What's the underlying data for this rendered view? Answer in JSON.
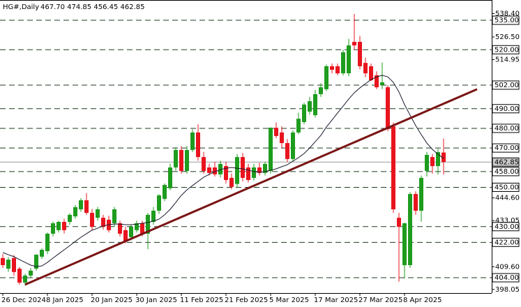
{
  "chart_data": {
    "type": "candlestick",
    "title": "HG#,Daily",
    "ohlc_text": "467.70 474.85 456.45 462.85",
    "categories": [
      "26 Dec 2024",
      null,
      null,
      null,
      null,
      null,
      null,
      null,
      "8 Jan 2025",
      null,
      null,
      null,
      null,
      null,
      null,
      null,
      "20 Jan 2025",
      null,
      null,
      null,
      null,
      null,
      null,
      null,
      "30 Jan 2025",
      null,
      null,
      null,
      null,
      null,
      null,
      null,
      "11 Feb 2025",
      null,
      null,
      null,
      null,
      null,
      null,
      null,
      "21 Feb 2025",
      null,
      null,
      null,
      null,
      null,
      null,
      null,
      "5 Mar 2025",
      null,
      null,
      null,
      null,
      null,
      null,
      null,
      "17 Mar 2025",
      null,
      null,
      null,
      null,
      null,
      null,
      null,
      "27 Mar 2025",
      null,
      null,
      null,
      null,
      null,
      null,
      null,
      "8 Apr 2025",
      null,
      null,
      null,
      null,
      null,
      null,
      null
    ],
    "open": [
      414.0,
      408.6,
      414.0,
      408.6,
      401.5,
      405.1,
      408.6,
      414.7,
      417.5,
      426.4,
      428.2,
      432.4,
      432.4,
      435.2,
      438.8,
      443.4,
      437.0,
      434.5,
      434.5,
      433.5,
      431.7,
      431.7,
      428.2,
      424.6,
      428.2,
      431.7,
      426.4,
      432.4,
      438.1,
      444.1,
      449.5,
      460.1,
      469.0,
      458.3,
      469.0,
      477.9,
      465.4,
      460.1,
      460.1,
      456.6,
      460.8,
      454.8,
      451.7,
      465.4,
      460.1,
      454.8,
      460.1,
      457.3,
      458.3,
      480.3,
      477.9,
      472.5,
      464.4,
      477.9,
      483.2,
      488.5,
      486.7,
      497.4,
      499.9,
      511.6,
      511.6,
      508.0,
      508.0,
      524.0,
      524.0,
      513.3,
      511.6,
      507.0,
      502.0,
      500.9,
      481.0,
      434.5,
      410.4,
      410.4,
      446.6,
      438.1,
      458.3,
      465.4,
      460.8,
      467.7
    ],
    "high": [
      416.0,
      414.5,
      415.5,
      409.5,
      406.0,
      409.0,
      416.0,
      419.0,
      427.0,
      432.5,
      433.0,
      434.0,
      436.8,
      441.0,
      444.5,
      447.0,
      439.0,
      440.0,
      436.0,
      435.5,
      440.0,
      433.0,
      430.0,
      431.0,
      433.0,
      433.0,
      437.0,
      440.0,
      446.5,
      452.0,
      462.0,
      470.5,
      471.0,
      471.0,
      479.5,
      482.0,
      468.0,
      462.0,
      463.0,
      463.5,
      463.0,
      457.0,
      467.0,
      467.5,
      462.0,
      462.0,
      462.5,
      463.0,
      480.5,
      483.0,
      481.0,
      474.5,
      479.0,
      488.0,
      493.0,
      496.0,
      499.5,
      503.0,
      512.5,
      513.0,
      513.0,
      520.0,
      525.5,
      538.2,
      527.0,
      516.0,
      513.0,
      509.0,
      513.5,
      502.0,
      483.0,
      437.0,
      432.0,
      447.5,
      448.0,
      456.0,
      468.0,
      467.0,
      469.5,
      474.85
    ],
    "low": [
      409.0,
      407.0,
      405.0,
      400.5,
      400.0,
      404.0,
      407.5,
      413.5,
      416.0,
      425.0,
      427.0,
      426.5,
      431.0,
      434.0,
      437.5,
      436.0,
      428.0,
      433.0,
      428.5,
      427.0,
      430.0,
      425.0,
      421.5,
      423.0,
      427.0,
      425.0,
      418.5,
      431.0,
      436.5,
      443.0,
      448.5,
      458.5,
      457.0,
      457.0,
      468.0,
      463.5,
      457.0,
      456.0,
      455.5,
      455.0,
      452.0,
      449.0,
      450.0,
      453.0,
      452.5,
      453.5,
      456.0,
      456.0,
      457.0,
      475.0,
      470.0,
      463.0,
      463.0,
      477.0,
      482.0,
      487.0,
      485.5,
      496.0,
      499.0,
      508.0,
      507.0,
      507.0,
      506.5,
      520.0,
      510.0,
      506.0,
      504.0,
      500.0,
      500.0,
      478.5,
      437.0,
      402.0,
      403.5,
      409.0,
      436.0,
      432.5,
      455.5,
      457.0,
      456.5,
      456.45
    ],
    "close": [
      410.4,
      413.2,
      406.9,
      401.5,
      405.1,
      407.6,
      415.7,
      418.2,
      426.4,
      431.7,
      432.4,
      428.2,
      436.0,
      439.9,
      443.4,
      437.0,
      429.9,
      438.8,
      429.9,
      428.2,
      438.8,
      426.4,
      422.8,
      429.9,
      431.7,
      426.4,
      436.0,
      438.1,
      445.9,
      451.2,
      460.1,
      469.0,
      458.3,
      469.0,
      477.9,
      465.4,
      458.3,
      457.3,
      456.6,
      461.9,
      453.7,
      450.2,
      465.4,
      454.8,
      453.7,
      460.1,
      457.3,
      461.9,
      480.3,
      476.1,
      472.5,
      464.4,
      477.9,
      484.9,
      492.1,
      493.8,
      497.4,
      500.9,
      511.6,
      509.8,
      508.0,
      518.7,
      522.2,
      522.2,
      511.6,
      508.0,
      504.5,
      500.9,
      503.4,
      479.6,
      438.8,
      429.9,
      431.7,
      446.6,
      438.1,
      454.8,
      466.5,
      460.8,
      467.9,
      462.85
    ],
    "ma": [
      416.8,
      415.7,
      414.7,
      413.2,
      411.8,
      410.4,
      409.7,
      410.0,
      411.8,
      414.0,
      416.1,
      418.2,
      420.3,
      422.5,
      424.6,
      426.4,
      428.2,
      429.2,
      430.3,
      431.0,
      431.3,
      431.3,
      431.0,
      431.0,
      431.3,
      431.7,
      432.1,
      432.8,
      433.8,
      436.0,
      438.8,
      442.3,
      445.9,
      448.7,
      450.9,
      453.0,
      455.1,
      456.6,
      458.0,
      459.0,
      459.7,
      460.1,
      459.7,
      459.4,
      458.7,
      458.0,
      457.6,
      458.0,
      458.7,
      459.4,
      460.5,
      461.5,
      463.3,
      465.1,
      467.2,
      470.0,
      473.2,
      476.4,
      480.7,
      484.2,
      487.8,
      491.3,
      494.9,
      498.1,
      500.6,
      502.7,
      504.8,
      506.2,
      507.0,
      506.2,
      503.4,
      498.5,
      492.1,
      486.7,
      481.4,
      476.8,
      472.5,
      469.3,
      466.8,
      464.7
    ],
    "up_color": "#1e9c1e",
    "down_color": "#e8141e",
    "ma_color": "#1a1a2e",
    "trendline": {
      "x": [
        4,
        85
      ],
      "y": [
        400.5,
        499.9
      ],
      "color": "#7a1414"
    },
    "levels": [
      {
        "value": 535,
        "label": "535.00"
      },
      {
        "value": 520,
        "label": "520.00"
      },
      {
        "value": 502,
        "label": "502.00"
      },
      {
        "value": 490,
        "label": "490.00"
      },
      {
        "value": 480,
        "label": "480.00"
      },
      {
        "value": 470,
        "label": "470.00"
      },
      {
        "value": 458,
        "label": "458.00"
      },
      {
        "value": 450,
        "label": "450.00"
      },
      {
        "value": 430,
        "label": "430.00"
      },
      {
        "value": 422,
        "label": "422.00"
      },
      {
        "value": 404,
        "label": "404.00"
      }
    ],
    "last_price": {
      "value": 462.85,
      "label": "462.85"
    },
    "ylim": [
      396.2,
      545.3
    ],
    "yticks": [
      {
        "value": 538.4,
        "label": "538.40"
      },
      {
        "value": 526.5,
        "label": "526.50"
      },
      514.95,
      {
        "value": 444.6,
        "label": "444.60"
      },
      433.05,
      {
        "value": 409.6,
        "label": "409.60"
      },
      398.05
    ]
  }
}
